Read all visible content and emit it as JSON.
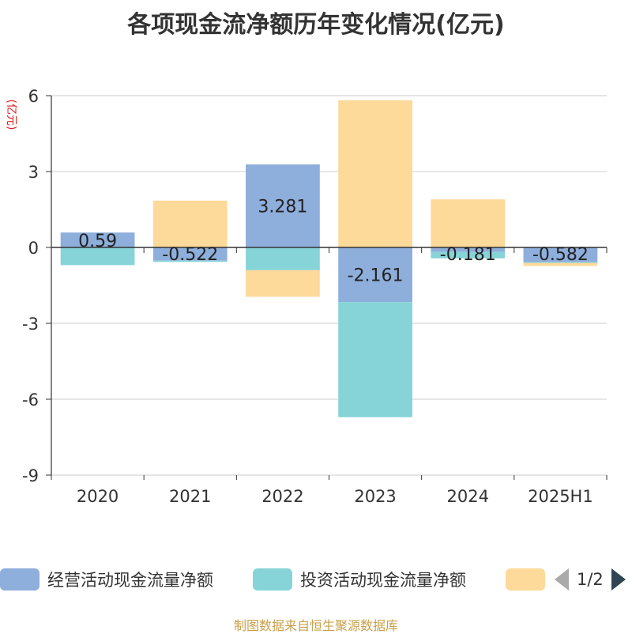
{
  "title": "各项现金流净额历年变化情况(亿元)",
  "source_text": "制图数据来自恒生聚源数据库",
  "legend": {
    "pager_text": "1/2",
    "visible_series": [
      0,
      1,
      2
    ]
  },
  "chart_data": {
    "type": "bar",
    "stacked": true,
    "title": "各项现金流净额历年变化情况(亿元)",
    "ylabel": "(亿元)",
    "ylim": [
      -9,
      6
    ],
    "yticks": [
      -9,
      -6,
      -3,
      0,
      3,
      6
    ],
    "grid": true,
    "legend_position": "bottom",
    "categories": [
      "2020",
      "2021",
      "2022",
      "2023",
      "2024",
      "2025H1"
    ],
    "series": [
      {
        "name": "经营活动现金流量净额",
        "color": "#8eaedb",
        "values": [
          0.59,
          -0.522,
          3.281,
          -2.161,
          -0.181,
          -0.582
        ]
      },
      {
        "name": "投资活动现金流量净额",
        "color": "#86d4d8",
        "values": [
          -0.7,
          -0.05,
          -0.9,
          -4.55,
          -0.25,
          -0.03
        ]
      },
      {
        "name": "",
        "color": "#fdd99a",
        "values": [
          0.0,
          1.85,
          -1.05,
          5.82,
          1.9,
          -0.12
        ]
      }
    ],
    "data_labels": {
      "series_index": 0,
      "values": [
        "0.59",
        "-0.522",
        "3.281",
        "-2.161",
        "-0.181",
        "-0.582"
      ]
    }
  }
}
